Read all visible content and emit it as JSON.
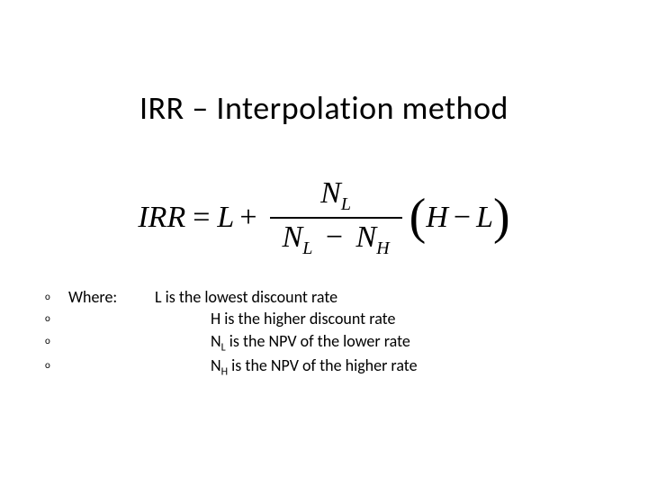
{
  "title": "IRR – Interpolation method",
  "formula": {
    "lhs": "IRR",
    "base": "L",
    "num_var": "N",
    "num_sub": "L",
    "den_left_var": "N",
    "den_left_sub": "L",
    "den_right_var": "N",
    "den_right_sub": "H",
    "paren_left": "H",
    "paren_right": "L"
  },
  "where_label": "Where:",
  "bullet_char": "o",
  "defs": {
    "line1": "L is the lowest discount rate",
    "line2": "H is the higher discount rate",
    "line3_pre": "N",
    "line3_sub": "L",
    "line3_post": " is the NPV of the lower rate",
    "line4_pre": "N",
    "line4_sub": "H",
    "line4_post": " is the NPV of the higher rate"
  },
  "colors": {
    "background": "#ffffff",
    "text": "#000000",
    "rule": "#000000"
  },
  "fontsizes": {
    "title": 36,
    "formula": 34,
    "body": 18
  }
}
